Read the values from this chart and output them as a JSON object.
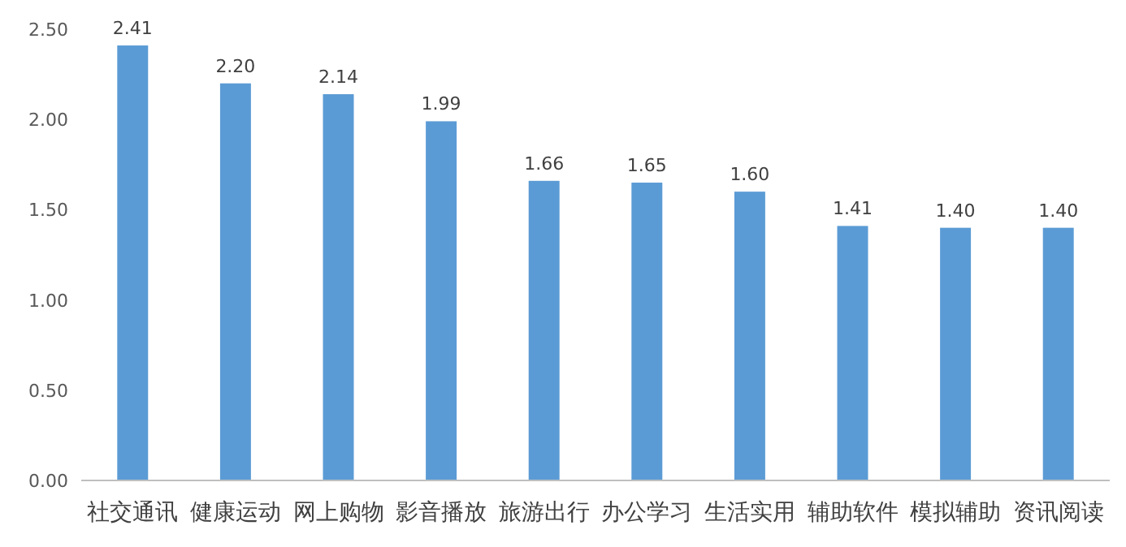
{
  "chart_data": {
    "type": "bar",
    "categories": [
      "社交通讯",
      "健康运动",
      "网上购物",
      "影音播放",
      "旅游出行",
      "办公学习",
      "生活实用",
      "辅助软件",
      "模拟辅助",
      "资讯阅读"
    ],
    "values": [
      2.41,
      2.2,
      2.14,
      1.99,
      1.66,
      1.65,
      1.6,
      1.41,
      1.4,
      1.4
    ],
    "value_labels": [
      "2.41",
      "2.20",
      "2.14",
      "1.99",
      "1.66",
      "1.65",
      "1.60",
      "1.41",
      "1.40",
      "1.40"
    ],
    "color": "#5b9bd5",
    "ylim": [
      0,
      2.5
    ],
    "yticks": [
      {
        "value": 0,
        "label": "0.00"
      },
      {
        "value": 0.5,
        "label": "0.50"
      },
      {
        "value": 1,
        "label": "1.00"
      },
      {
        "value": 1.5,
        "label": "1.50"
      },
      {
        "value": 2,
        "label": "2.00"
      },
      {
        "value": 2.5,
        "label": "2.50"
      }
    ],
    "grid": false
  }
}
